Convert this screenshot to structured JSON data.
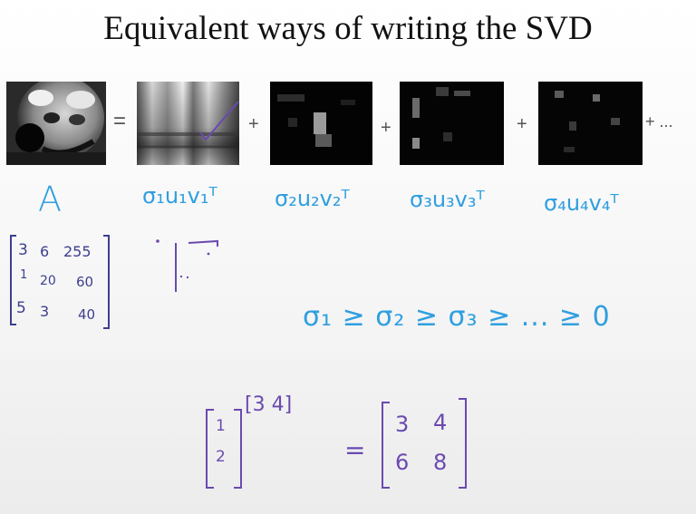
{
  "slide": {
    "title": "Equivalent ways of writing the SVD"
  },
  "equation": {
    "equals": "=",
    "plus": "+",
    "ellipsis": "+ ..."
  },
  "labels": {
    "a": "A",
    "term1": "σ₁u₁v₁ᵀ",
    "term2": "σ₂u₂v₂ᵀ",
    "term3": "σ₃u₃v₃ᵀ",
    "term4": "σ₄u₄v₄ᵀ"
  },
  "matrix_a": {
    "rows": [
      [
        "3",
        "6",
        "255"
      ],
      [
        "1",
        "20",
        "60"
      ],
      [
        "5",
        "3",
        "40"
      ]
    ]
  },
  "ordering": "σ₁ ≥ σ₂ ≥ σ₃ ≥ ... ≥ 0",
  "outer_product": {
    "column": [
      "1",
      "2"
    ],
    "row": "[3  4]",
    "equals": "=",
    "result": [
      [
        "3",
        "4"
      ],
      [
        "6",
        "8"
      ]
    ]
  },
  "colors": {
    "ink_blue": "#2f9fe0",
    "ink_purple": "#6a4ab0",
    "ink_navy": "#3d3f8e"
  }
}
